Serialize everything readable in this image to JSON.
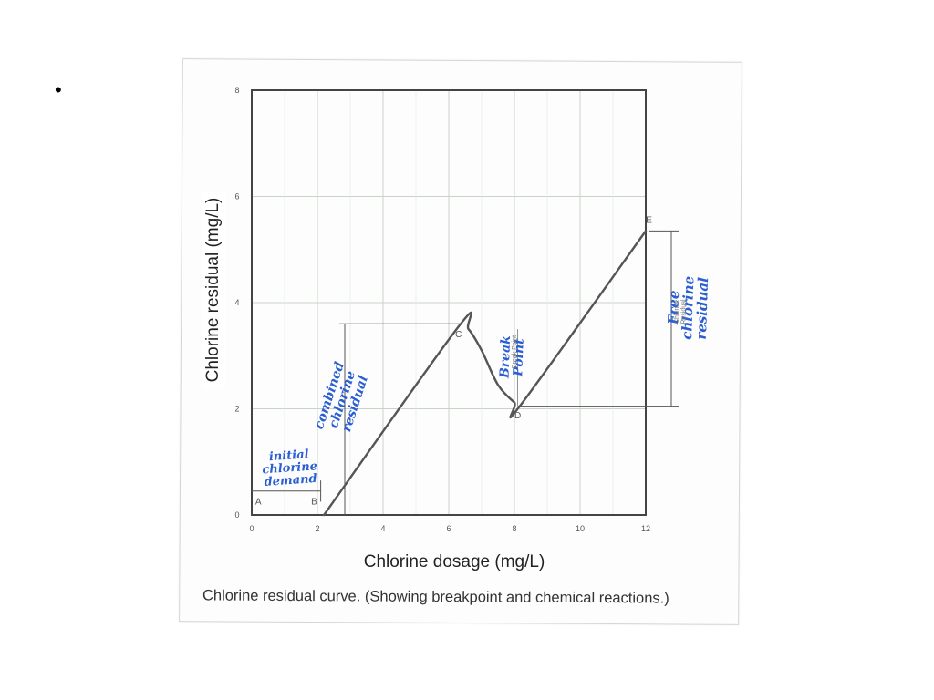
{
  "slide": {
    "bullet": "•"
  },
  "figure": {
    "caption": "Chlorine residual curve. (Showing breakpoint and chemical reactions.)"
  },
  "chart_data": {
    "type": "line",
    "xlabel": "Chlorine dosage (mg/L)",
    "ylabel": "Chlorine residual (mg/L)",
    "xlim": [
      0,
      12
    ],
    "ylim": [
      0,
      8
    ],
    "x_ticks": [
      0,
      2,
      4,
      6,
      8,
      10,
      12
    ],
    "y_ticks": [
      0,
      2,
      4,
      6,
      8
    ],
    "grid": true,
    "series": [
      {
        "x": [
          2.2,
          6.3,
          6.6,
          7.0,
          7.5,
          8.0,
          8.2,
          12
        ],
        "y": [
          0.0,
          3.55,
          3.5,
          3.1,
          2.45,
          2.12,
          2.08,
          5.35
        ]
      }
    ],
    "points": [
      {
        "label": "A",
        "x": 0.2,
        "y": 0.2
      },
      {
        "label": "B",
        "x": 1.9,
        "y": 0.2
      },
      {
        "label": "C",
        "x": 6.3,
        "y": 3.35
      },
      {
        "label": "D",
        "x": 8.1,
        "y": 1.82
      },
      {
        "label": "E",
        "x": 12.1,
        "y": 5.5
      }
    ],
    "annotations": [
      {
        "text": "initial chlorine demand",
        "handwritten": true,
        "color": "#2a5fd1"
      },
      {
        "text": "combined chlorine residual",
        "handwritten": true,
        "color": "#2a5fd1"
      },
      {
        "text": "Break Point",
        "handwritten": true,
        "color": "#2a5fd1"
      },
      {
        "text": "Break Point",
        "handwritten": false,
        "color": "#777777"
      },
      {
        "text": "Free chlorine residual",
        "handwritten": true,
        "color": "#2a5fd1"
      },
      {
        "text": "Chlorine Residual",
        "handwritten": false,
        "color": "#777777"
      }
    ],
    "colors": {
      "curve": "#555555",
      "grid": "#c9d4c9",
      "frame": "#444444",
      "ink": "#2a5fd1"
    }
  }
}
